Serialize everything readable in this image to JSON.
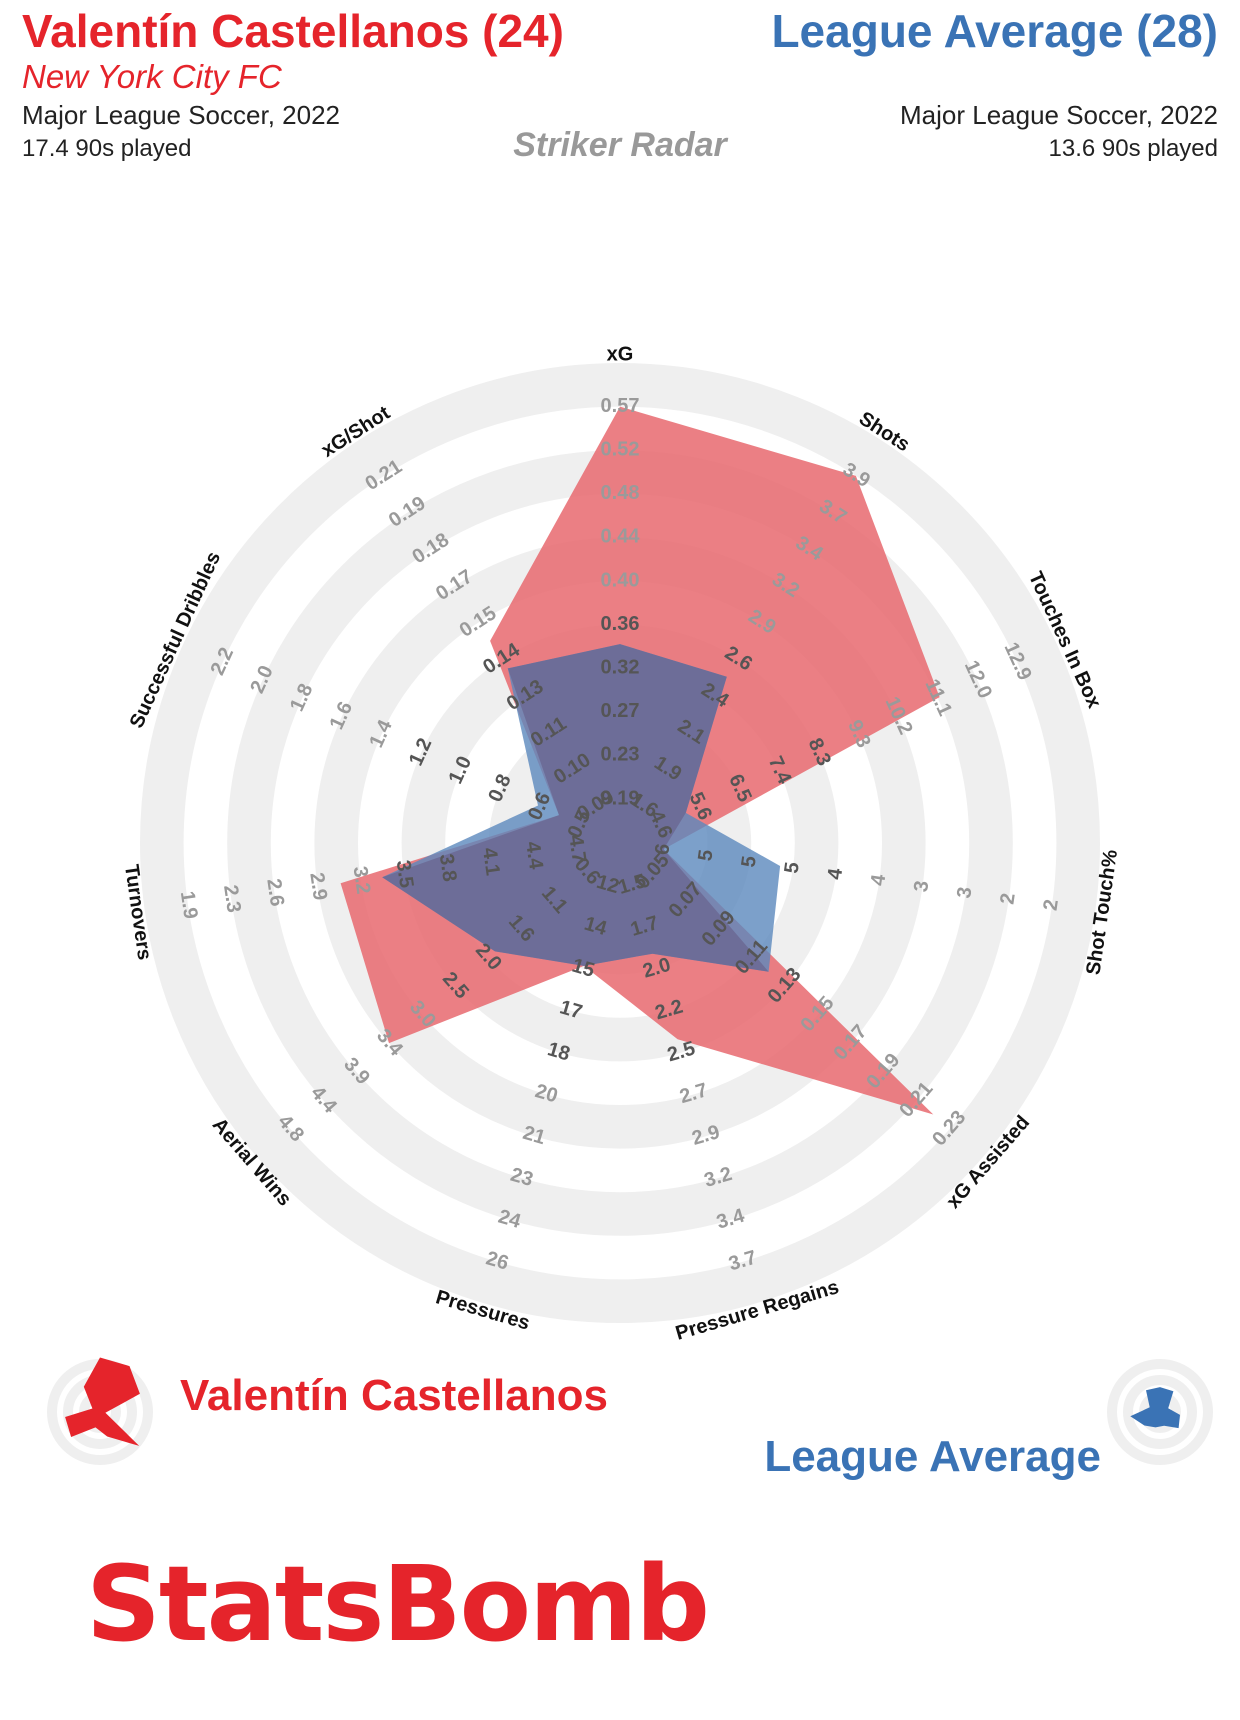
{
  "header": {
    "player": {
      "title": "Valentín Castellanos (24)",
      "team": "New York City FC",
      "competition": "Major League Soccer, 2022",
      "minutes": "17.4 90s played"
    },
    "comparison": {
      "title": "League Average (28)",
      "competition": "Major League Soccer, 2022",
      "minutes": "13.6 90s played"
    },
    "radar_title": "Striker Radar"
  },
  "colors": {
    "player": "#e5242b",
    "average": "#3a73b5",
    "player_fill": "#e8696e",
    "average_fill": "#5b88bd",
    "rings": "#efefef",
    "tick_text": "#9a9a9a",
    "inner_tick_text": "#555555"
  },
  "chart_data": {
    "type": "radar",
    "title": "Striker Radar",
    "axes": [
      {
        "name": "xG",
        "ticks": [
          "0.19",
          "0.23",
          "0.27",
          "0.32",
          "0.36",
          "0.40",
          "0.44",
          "0.48",
          "0.52",
          "0.57"
        ]
      },
      {
        "name": "Shots",
        "ticks": [
          "1.6",
          "1.9",
          "2.1",
          "2.4",
          "2.6",
          "2.9",
          "3.2",
          "3.4",
          "3.7",
          "3.9"
        ]
      },
      {
        "name": "Touches In Box",
        "ticks": [
          "4.6",
          "5.6",
          "6.5",
          "7.4",
          "8.3",
          "9.3",
          "10.2",
          "11.1",
          "12.0",
          "12.9"
        ]
      },
      {
        "name": "Shot Touch%",
        "ticks": [
          "6",
          "5",
          "5",
          "5",
          "4",
          "4",
          "3",
          "3",
          "2",
          "2"
        ]
      },
      {
        "name": "xG Assisted",
        "ticks": [
          "0.05",
          "0.07",
          "0.09",
          "0.11",
          "0.13",
          "0.15",
          "0.17",
          "0.19",
          "0.21",
          "0.23"
        ]
      },
      {
        "name": "Pressure Regains",
        "ticks": [
          "1.5",
          "1.7",
          "2.0",
          "2.2",
          "2.5",
          "2.7",
          "2.9",
          "3.2",
          "3.4",
          "3.7"
        ]
      },
      {
        "name": "Pressures",
        "ticks": [
          "12",
          "14",
          "15",
          "17",
          "18",
          "20",
          "21",
          "23",
          "24",
          "26"
        ]
      },
      {
        "name": "Aerial Wins",
        "ticks": [
          "0.6",
          "1.1",
          "1.6",
          "2.0",
          "2.5",
          "3.0",
          "3.4",
          "3.9",
          "4.4",
          "4.8"
        ]
      },
      {
        "name": "Turnovers",
        "ticks": [
          "4.7",
          "4.4",
          "4.1",
          "3.8",
          "3.5",
          "3.2",
          "2.9",
          "2.6",
          "2.3",
          "1.9"
        ]
      },
      {
        "name": "Successful Dribbles",
        "ticks": [
          "0.5",
          "0.6",
          "0.8",
          "1.0",
          "1.2",
          "1.4",
          "1.6",
          "1.8",
          "2.0",
          "2.2"
        ]
      },
      {
        "name": "xG/Shot",
        "ticks": [
          "0.09",
          "0.10",
          "0.11",
          "0.13",
          "0.14",
          "0.15",
          "0.17",
          "0.18",
          "0.19",
          "0.21"
        ]
      }
    ],
    "series": [
      {
        "name": "Valentín Castellanos",
        "values": [
          0.57,
          3.9,
          11.1,
          6,
          0.22,
          2.4,
          15,
          3.4,
          3.0,
          0.6,
          0.15
        ]
      },
      {
        "name": "League Average",
        "values": [
          0.34,
          2.5,
          5.2,
          4.8,
          0.12,
          1.9,
          15,
          1.9,
          3.3,
          0.7,
          0.14
        ]
      }
    ]
  },
  "legend": {
    "player_label": "Valentín Castellanos",
    "average_label": "League Average"
  },
  "brand": {
    "logo_text": "StatsBomb"
  }
}
